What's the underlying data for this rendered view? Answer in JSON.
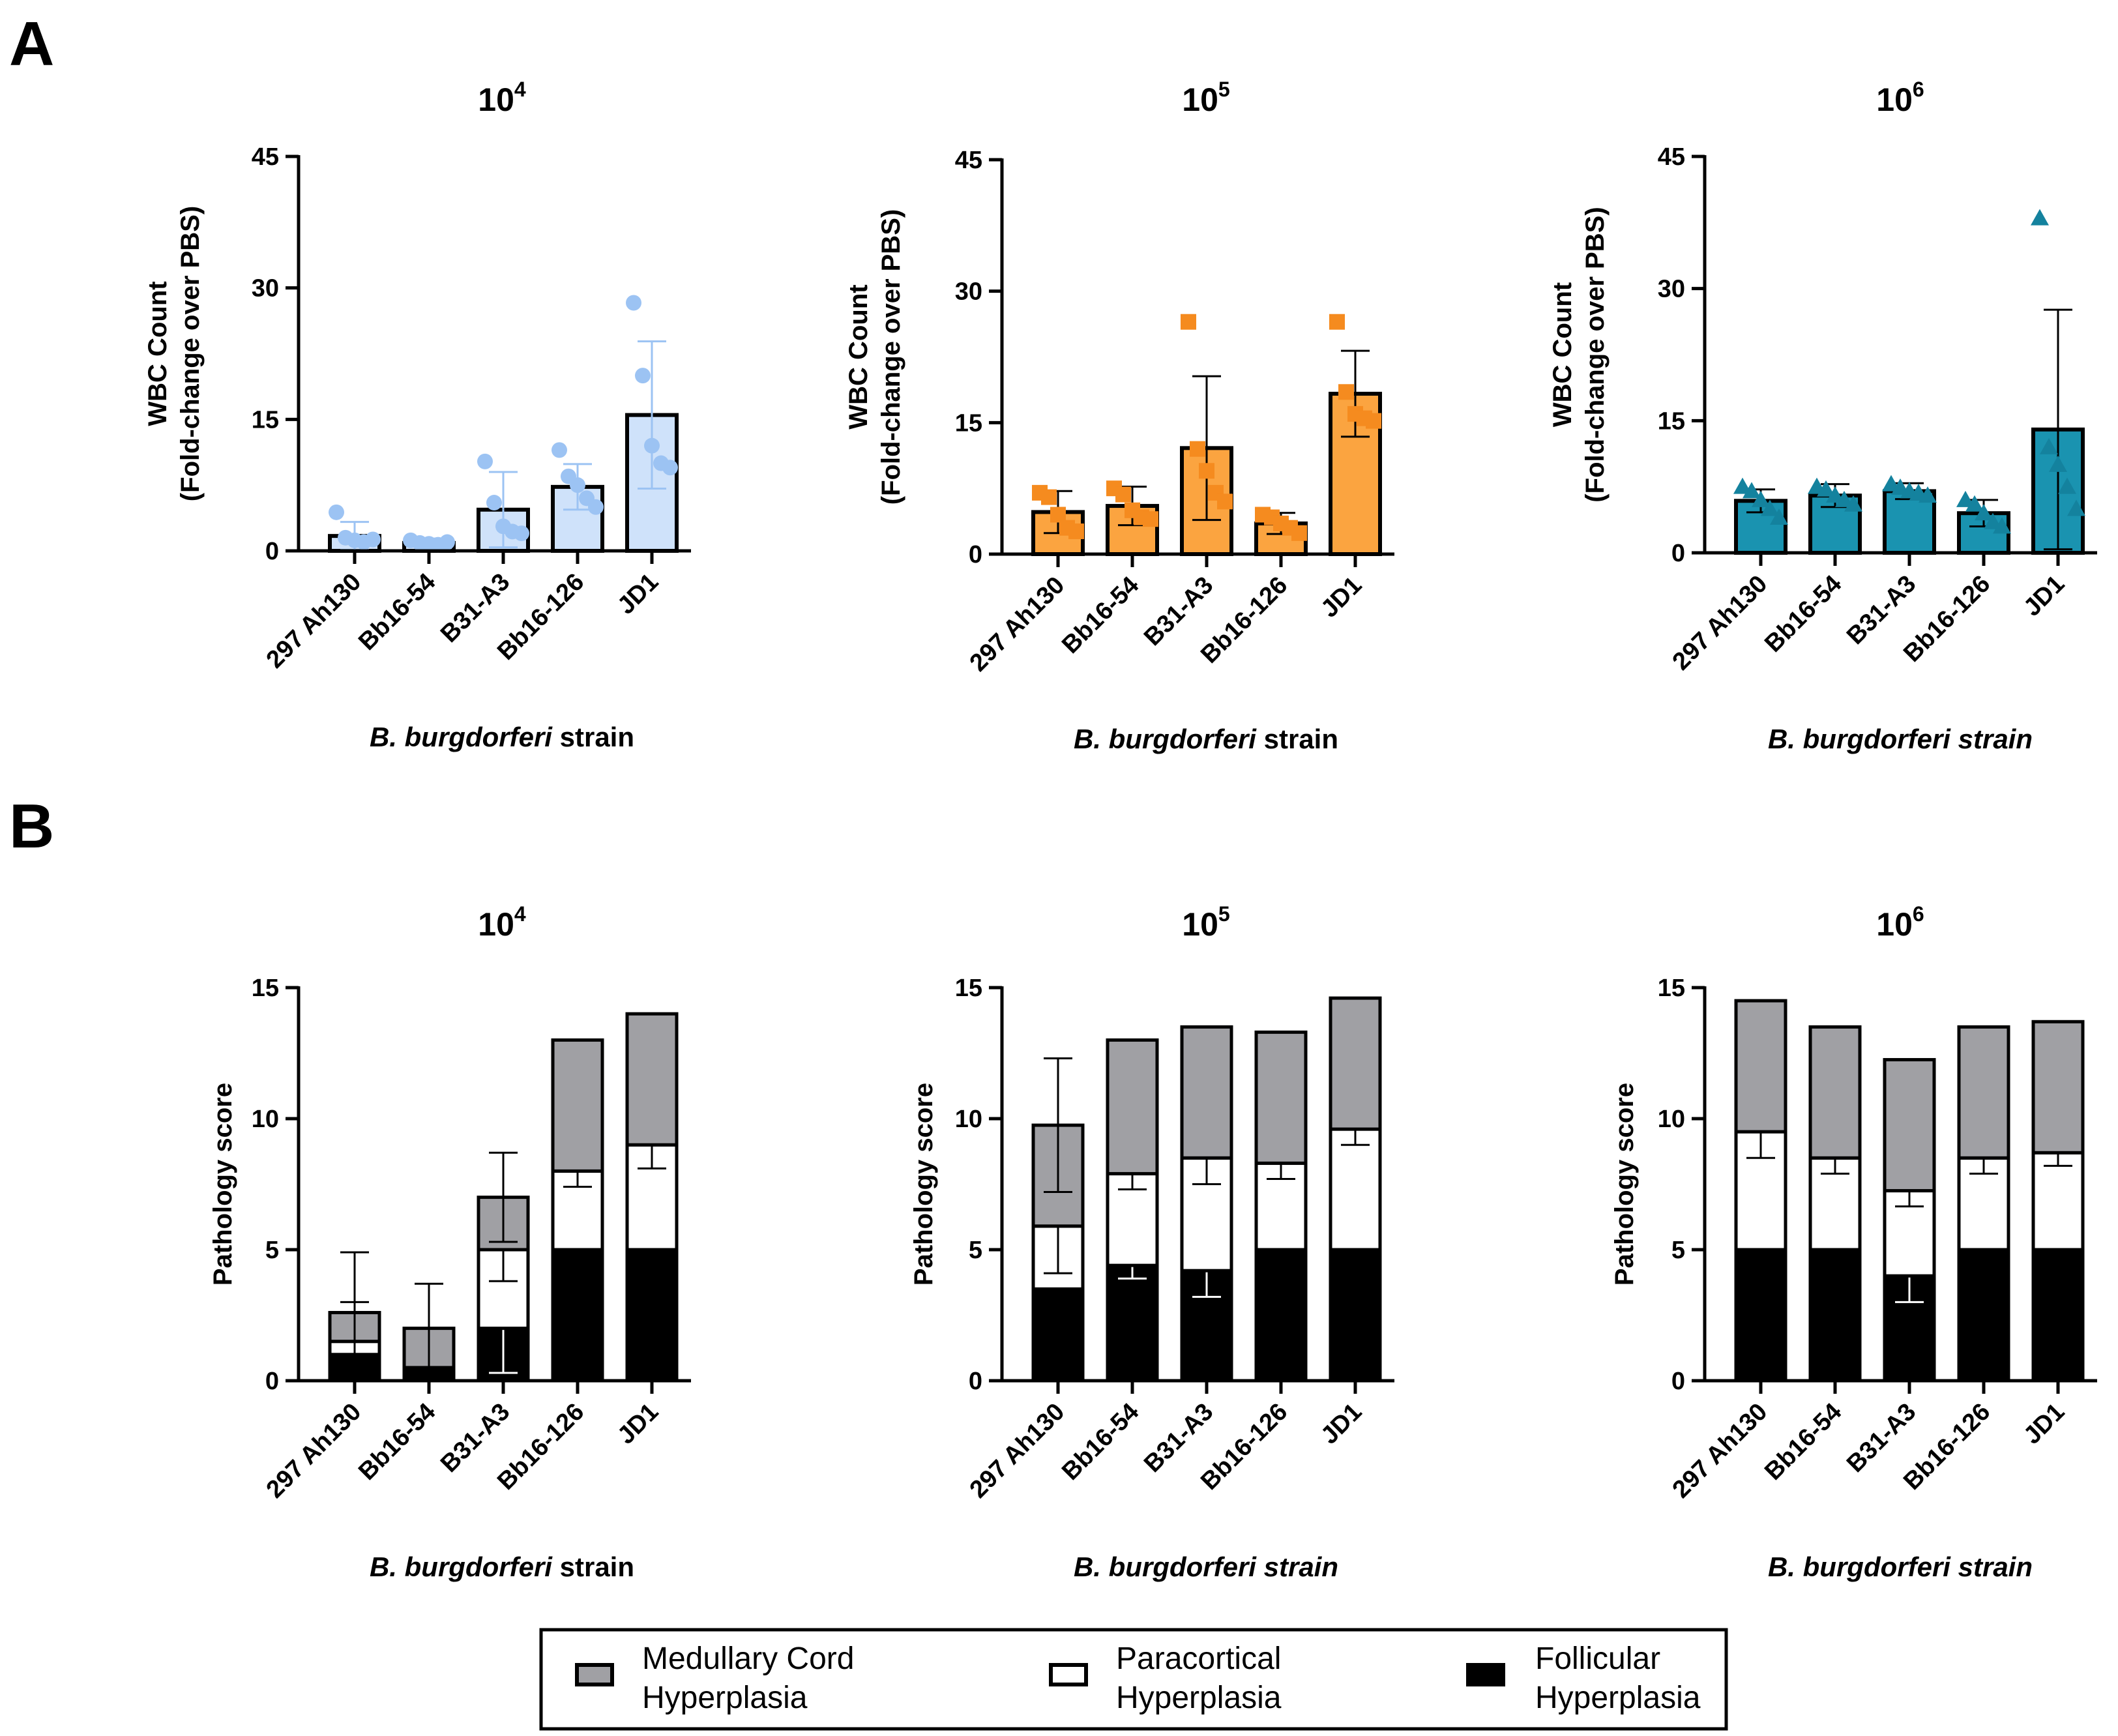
{
  "panel_labels": {
    "a": "A",
    "b": "B"
  },
  "legend": {
    "items": [
      {
        "name": "Medullary Cord Hyperplasia",
        "lines": [
          "Medullary Cord",
          "Hyperplasia"
        ],
        "color": "#a0a0a4"
      },
      {
        "name": "Paracortical Hyperplasia",
        "lines": [
          "Paracortical",
          "Hyperplasia"
        ],
        "color": "#ffffff"
      },
      {
        "name": "Follicular Hyperplasia",
        "lines": [
          "Follicular",
          "Hyperplasia"
        ],
        "color": "#000000"
      }
    ]
  },
  "chart_data": [
    {
      "type": "bar",
      "panel": "A",
      "title": {
        "base": "10",
        "exponent": "4"
      },
      "ylabel": [
        "WBC Count",
        "(Fold-change over PBS)"
      ],
      "xlabel": {
        "italic": "B. burgdorferi",
        "rest": " strain"
      },
      "ylim": [
        0,
        45
      ],
      "yticks": [
        0,
        15,
        30,
        45
      ],
      "categories": [
        "297 Ah130",
        "Bb16-54",
        "B31-A3",
        "Bb16-126",
        "JD1"
      ],
      "marker": "circle",
      "fill_color": "#cfe2fa",
      "marker_color": "#9cc3f3",
      "error_color": "#9cc3f3",
      "values": [
        1.7,
        0.9,
        4.7,
        7.3,
        15.5
      ],
      "errors": [
        1.6,
        0.5,
        4.3,
        2.6,
        8.4
      ],
      "points": [
        [
          4.4,
          1.5,
          1.2,
          1.0,
          1.3
        ],
        [
          1.2,
          0.9,
          0.8,
          0.7,
          1.0
        ],
        [
          10.2,
          5.5,
          2.8,
          2.2,
          2.0
        ],
        [
          11.5,
          8.5,
          7.5,
          6.0,
          5.0
        ],
        [
          28.3,
          20.0,
          12.0,
          10.0,
          9.5
        ]
      ]
    },
    {
      "type": "bar",
      "panel": "A",
      "title": {
        "base": "10",
        "exponent": "5"
      },
      "ylabel": [
        "WBC Count",
        "(Fold-change over PBS)"
      ],
      "xlabel": {
        "italic": "B. burgdorferi",
        "rest": " strain"
      },
      "ylim": [
        0,
        45
      ],
      "yticks": [
        0,
        15,
        30,
        45
      ],
      "categories": [
        "297 Ah130",
        "Bb16-54",
        "B31-A3",
        "Bb16-126",
        "JD1"
      ],
      "marker": "square",
      "fill_color": "#fba440",
      "marker_color": "#f58b1f",
      "error_color": "#000000",
      "values": [
        4.8,
        5.5,
        12.1,
        3.5,
        18.3
      ],
      "errors": [
        2.4,
        2.2,
        8.2,
        1.2,
        4.9
      ],
      "points": [
        [
          7.0,
          6.5,
          4.5,
          3.0,
          2.6
        ],
        [
          7.5,
          6.8,
          5.0,
          4.2,
          4.0
        ],
        [
          26.5,
          12.0,
          9.5,
          7.0,
          6.0
        ],
        [
          4.5,
          4.2,
          3.5,
          3.0,
          2.4
        ],
        [
          26.5,
          18.5,
          16.0,
          15.5,
          15.2
        ]
      ]
    },
    {
      "type": "bar",
      "panel": "A",
      "title": {
        "base": "10",
        "exponent": "6"
      },
      "ylabel": [
        "WBC Count",
        "(Fold-change over PBS)"
      ],
      "xlabel": {
        "italic": "B. burgdorferi strain",
        "rest": ""
      },
      "ylim": [
        0,
        45
      ],
      "yticks": [
        0,
        15,
        30,
        45
      ],
      "categories": [
        "297 Ah130",
        "Bb16-54",
        "B31-A3",
        "Bb16-126",
        "JD1"
      ],
      "marker": "triangle",
      "fill_color": "#1a93b0",
      "marker_color": "#14829e",
      "error_color": "#000000",
      "values": [
        5.9,
        6.5,
        7.0,
        4.5,
        14.0
      ],
      "errors": [
        1.3,
        1.3,
        0.9,
        1.5,
        13.6
      ],
      "points": [
        [
          7.5,
          7.0,
          6.0,
          5.0,
          4.0
        ],
        [
          7.5,
          7.2,
          6.5,
          6.0,
          5.5
        ],
        [
          7.8,
          7.4,
          7.0,
          6.8,
          6.5
        ],
        [
          6.0,
          5.5,
          4.5,
          3.5,
          3.0
        ],
        [
          38.0,
          12.0,
          10.0,
          7.5,
          5.0
        ]
      ]
    },
    {
      "type": "stacked-bar",
      "panel": "B",
      "title": {
        "base": "10",
        "exponent": "4"
      },
      "ylabel": [
        "Pathology score"
      ],
      "xlabel": {
        "italic": "B. burgdorferi",
        "rest": " strain"
      },
      "ylim": [
        0,
        15
      ],
      "yticks": [
        0,
        5,
        10,
        15
      ],
      "categories": [
        "297 Ah130",
        "Bb16-54",
        "B31-A3",
        "Bb16-126",
        "JD1"
      ],
      "series": [
        {
          "name": "Follicular Hyperplasia",
          "color": "#000000",
          "values": [
            1.0,
            0.5,
            2.0,
            5.0,
            5.0
          ],
          "errors": [
            0.0,
            0.0,
            1.7,
            0.0,
            0.0
          ]
        },
        {
          "name": "Paracortical Hyperplasia",
          "color": "#ffffff",
          "values": [
            0.5,
            0.0,
            3.0,
            3.0,
            4.0
          ],
          "errors": [
            1.5,
            0.0,
            1.2,
            0.6,
            0.9
          ]
        },
        {
          "name": "Medullary Cord Hyperplasia",
          "color": "#a0a0a4",
          "values": [
            1.1,
            1.5,
            2.0,
            5.0,
            5.0
          ],
          "errors": [
            2.3,
            1.7,
            1.7,
            0.0,
            0.0
          ]
        }
      ]
    },
    {
      "type": "stacked-bar",
      "panel": "B",
      "title": {
        "base": "10",
        "exponent": "5"
      },
      "ylabel": [
        "Pathology score"
      ],
      "xlabel": {
        "italic": "B. burgdorferi strain",
        "rest": ""
      },
      "ylim": [
        0,
        15
      ],
      "yticks": [
        0,
        5,
        10,
        15
      ],
      "categories": [
        "297 Ah130",
        "Bb16-54",
        "B31-A3",
        "Bb16-126",
        "JD1"
      ],
      "series": [
        {
          "name": "Follicular Hyperplasia",
          "color": "#000000",
          "values": [
            3.5,
            4.4,
            4.2,
            5.0,
            5.0
          ],
          "errors": [
            0.0,
            0.5,
            1.0,
            0.0,
            0.0
          ]
        },
        {
          "name": "Paracortical Hyperplasia",
          "color": "#ffffff",
          "values": [
            2.4,
            3.5,
            4.3,
            3.3,
            4.6
          ],
          "errors": [
            1.8,
            0.6,
            1.0,
            0.6,
            0.6
          ]
        },
        {
          "name": "Medullary Cord Hyperplasia",
          "color": "#a0a0a4",
          "values": [
            3.85,
            5.1,
            5.0,
            5.0,
            5.0
          ],
          "errors": [
            2.55,
            0.0,
            0.0,
            0.0,
            0.0
          ]
        }
      ]
    },
    {
      "type": "stacked-bar",
      "panel": "B",
      "title": {
        "base": "10",
        "exponent": "6"
      },
      "ylabel": [
        "Pathology score"
      ],
      "xlabel": {
        "italic": "B. burgdorferi strain",
        "rest": ""
      },
      "ylim": [
        0,
        15
      ],
      "yticks": [
        0,
        5,
        10,
        15
      ],
      "categories": [
        "297 Ah130",
        "Bb16-54",
        "B31-A3",
        "Bb16-126",
        "JD1"
      ],
      "series": [
        {
          "name": "Follicular Hyperplasia",
          "color": "#000000",
          "values": [
            5.0,
            5.0,
            4.0,
            5.0,
            5.0
          ],
          "errors": [
            0.0,
            0.0,
            1.0,
            0.0,
            0.0
          ]
        },
        {
          "name": "Paracortical Hyperplasia",
          "color": "#ffffff",
          "values": [
            4.5,
            3.5,
            3.25,
            3.5,
            3.7
          ],
          "errors": [
            1.0,
            0.6,
            0.6,
            0.6,
            0.5
          ]
        },
        {
          "name": "Medullary Cord Hyperplasia",
          "color": "#a0a0a4",
          "values": [
            5.0,
            5.0,
            5.0,
            5.0,
            5.0
          ],
          "errors": [
            0.0,
            0.0,
            0.0,
            0.0,
            0.0
          ]
        }
      ]
    }
  ]
}
